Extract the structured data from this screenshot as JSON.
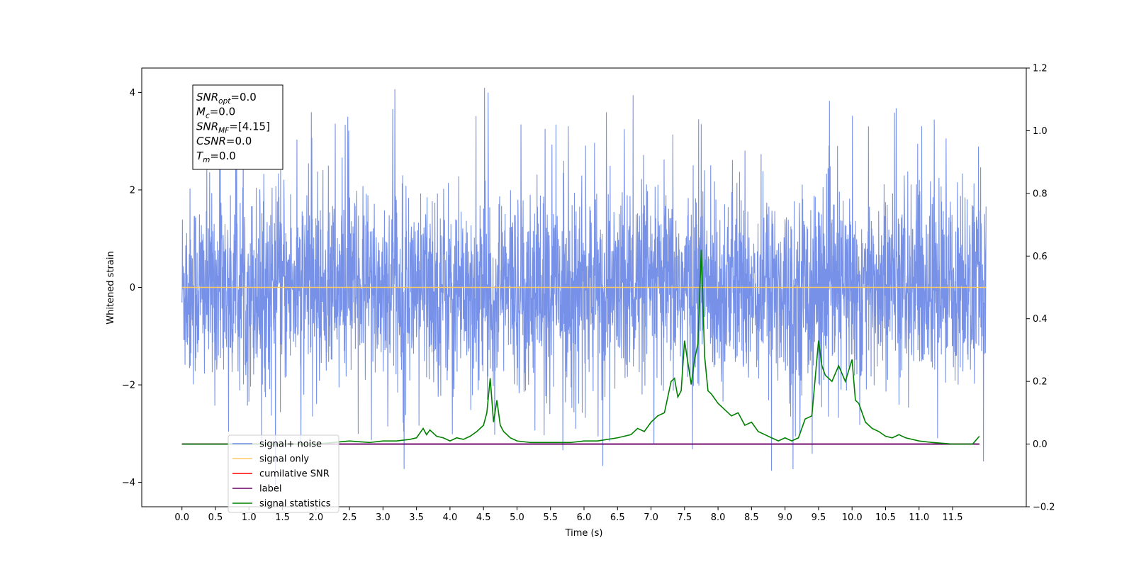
{
  "chart_data": {
    "type": "line",
    "xlabel": "Time (s)",
    "ylabel": "Whitened strain",
    "xlim": [
      -0.6,
      12.6
    ],
    "ylim": [
      -4.5,
      4.5
    ],
    "y2lim": [
      -0.2,
      1.2
    ],
    "xticks": [
      "0.0",
      "0.5",
      "1.0",
      "1.5",
      "2.0",
      "2.5",
      "3.0",
      "3.5",
      "4.0",
      "4.5",
      "5.0",
      "5.5",
      "6.0",
      "6.5",
      "7.0",
      "7.5",
      "8.0",
      "8.5",
      "9.0",
      "9.5",
      "10.0",
      "10.5",
      "11.0",
      "11.5"
    ],
    "yticks": [
      "−4",
      "−2",
      "0",
      "2",
      "4"
    ],
    "y2ticks": [
      "−0.2",
      "0.0",
      "0.2",
      "0.4",
      "0.6",
      "0.8",
      "1.0",
      "1.2"
    ],
    "grid": false,
    "legend_placement": "lower-left",
    "annotation": {
      "lines": [
        {
          "sym": "SNR",
          "sub": "opt",
          "rest": "=0.0"
        },
        {
          "sym": "M",
          "sub": "c",
          "rest": "=0.0"
        },
        {
          "sym": "SNR",
          "sub": "MF",
          "rest": "=[4.15]"
        },
        {
          "sym": "CSNR",
          "sub": "",
          "rest": "=0.0"
        },
        {
          "sym": "T",
          "sub": "m",
          "rest": "=0.0"
        }
      ]
    },
    "series": [
      {
        "name": "signal+ noise",
        "color": "#6f8be6",
        "axis": "left",
        "description_range": [
          0.0,
          12.0
        ],
        "typical_amplitude": 1.0,
        "peak_max": 4.1,
        "peak_min": -4.1
      },
      {
        "name": "signal only",
        "color": "#ffc966",
        "axis": "left",
        "x": [
          0.0,
          12.0
        ],
        "y": [
          0.0,
          0.0
        ]
      },
      {
        "name": "cumilative SNR",
        "color": "#ff0000",
        "axis": "right",
        "x": [
          0.0,
          11.9
        ],
        "y": [
          0.0,
          0.0
        ]
      },
      {
        "name": "label",
        "color": "#660066",
        "axis": "right",
        "x": [
          0.0,
          11.9
        ],
        "y": [
          0.0,
          0.0
        ]
      },
      {
        "name": "signal statistics",
        "color": "#008000",
        "axis": "right",
        "x": [
          0.0,
          0.5,
          1.0,
          1.5,
          2.0,
          2.5,
          2.8,
          3.0,
          3.2,
          3.4,
          3.5,
          3.6,
          3.65,
          3.7,
          3.8,
          3.9,
          4.0,
          4.1,
          4.2,
          4.3,
          4.4,
          4.5,
          4.55,
          4.6,
          4.65,
          4.7,
          4.75,
          4.8,
          4.9,
          5.0,
          5.2,
          5.5,
          5.8,
          6.0,
          6.2,
          6.5,
          6.7,
          6.8,
          6.9,
          7.0,
          7.1,
          7.2,
          7.3,
          7.35,
          7.4,
          7.45,
          7.5,
          7.6,
          7.65,
          7.7,
          7.75,
          7.8,
          7.85,
          7.9,
          8.0,
          8.1,
          8.2,
          8.3,
          8.4,
          8.5,
          8.6,
          8.7,
          8.8,
          8.9,
          9.0,
          9.1,
          9.2,
          9.3,
          9.4,
          9.5,
          9.55,
          9.6,
          9.65,
          9.7,
          9.8,
          9.9,
          10.0,
          10.05,
          10.1,
          10.2,
          10.3,
          10.4,
          10.5,
          10.6,
          10.7,
          10.8,
          11.0,
          11.2,
          11.5,
          11.8,
          11.9
        ],
        "y": [
          0.0,
          0.0,
          0.0,
          0.0,
          0.0,
          0.01,
          0.005,
          0.01,
          0.01,
          0.015,
          0.02,
          0.05,
          0.03,
          0.045,
          0.025,
          0.02,
          0.01,
          0.02,
          0.015,
          0.025,
          0.04,
          0.06,
          0.1,
          0.21,
          0.07,
          0.14,
          0.06,
          0.04,
          0.02,
          0.01,
          0.005,
          0.005,
          0.005,
          0.01,
          0.01,
          0.02,
          0.03,
          0.05,
          0.04,
          0.07,
          0.09,
          0.1,
          0.2,
          0.21,
          0.15,
          0.17,
          0.33,
          0.19,
          0.27,
          0.32,
          0.62,
          0.28,
          0.17,
          0.16,
          0.13,
          0.11,
          0.09,
          0.1,
          0.06,
          0.07,
          0.04,
          0.03,
          0.02,
          0.01,
          0.02,
          0.01,
          0.02,
          0.08,
          0.09,
          0.33,
          0.25,
          0.22,
          0.21,
          0.2,
          0.25,
          0.2,
          0.27,
          0.14,
          0.13,
          0.07,
          0.05,
          0.04,
          0.025,
          0.02,
          0.03,
          0.02,
          0.01,
          0.005,
          0.0,
          0.0,
          0.025
        ]
      }
    ]
  }
}
